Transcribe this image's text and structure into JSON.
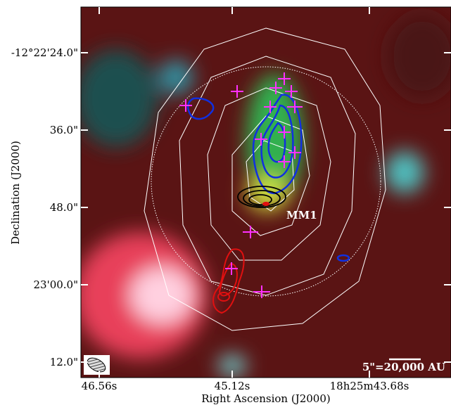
{
  "x_axis": {
    "label": "Right Ascension (J2000)",
    "ticks": [
      "46.56s",
      "45.12s",
      "18h25m43.68s"
    ]
  },
  "y_axis": {
    "label": "Declination (J2000)",
    "ticks": [
      "-12°22'24.0\"",
      "36.0\"",
      "48.0\"",
      "23'00.0\"",
      "12.0\""
    ]
  },
  "annotations": {
    "source": "MM1",
    "scale_bar": "5\"=20,000 AU"
  }
}
